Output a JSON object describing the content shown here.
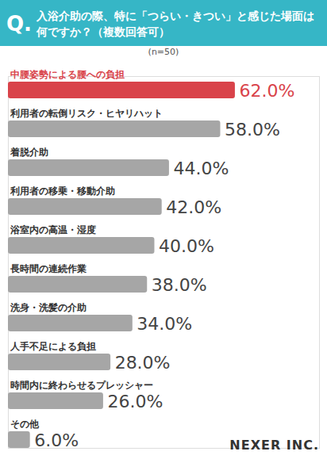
{
  "chart_data": {
    "type": "bar",
    "title": "Q. 入浴介助の際、特に「つらい・きつい」と感じた場面は何ですか？（複数回答可）",
    "subtitle": "(n=50)",
    "caption": "NEXER INC.",
    "orientation": "horizontal",
    "categories": [
      "中腰姿勢による腰への負担",
      "利用者の転倒リスク・ヒヤリハット",
      "着脱介助",
      "利用者の移乗・移動介助",
      "浴室内の高温・湿度",
      "長時間の連続作業",
      "洗身・洗髪の介助",
      "人手不足による負担",
      "時間内に終わらせるプレッシャー",
      "その他"
    ],
    "values": [
      62,
      58,
      44,
      42,
      40,
      38,
      34,
      28,
      26,
      6
    ],
    "value_labels": [
      "62.0%",
      "58.0%",
      "44.0%",
      "42.0%",
      "40.0%",
      "38.0%",
      "34.0%",
      "28.0%",
      "26.0%",
      "6.0%"
    ],
    "colors": [
      "#d9434a",
      "#a6a6a6",
      "#a6a6a6",
      "#a6a6a6",
      "#a6a6a6",
      "#a6a6a6",
      "#a6a6a6",
      "#a6a6a6",
      "#a6a6a6",
      "#a6a6a6"
    ],
    "xlim": [
      0,
      85
    ],
    "xticks": [],
    "tick_labels": false,
    "data_labels": true,
    "grid": false
  }
}
